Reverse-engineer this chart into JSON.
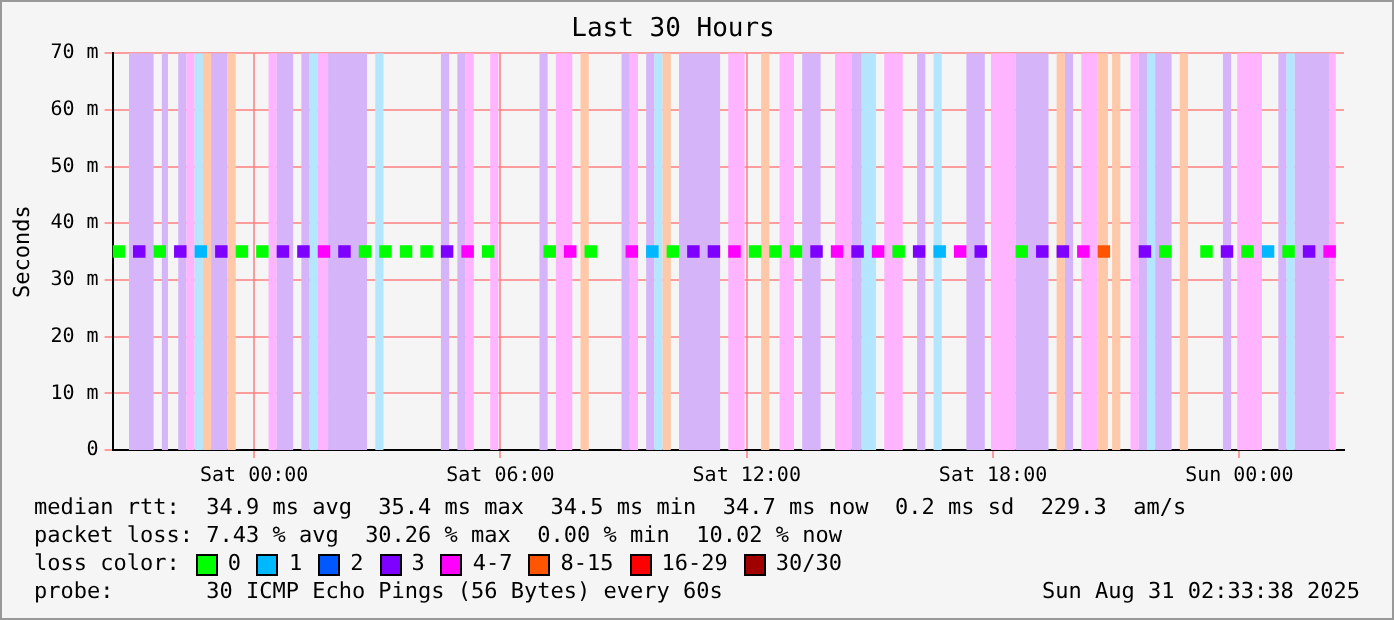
{
  "chart_data": {
    "type": "scatter",
    "title": "Last 30 Hours",
    "ylabel": "Seconds",
    "x": [
      "2025-08-29T20:42",
      "2025-08-29T21:12",
      "2025-08-29T21:42",
      "2025-08-29T22:12",
      "2025-08-29T22:42",
      "2025-08-29T23:12",
      "2025-08-29T23:42",
      "2025-08-30T00:12",
      "2025-08-30T00:42",
      "2025-08-30T01:12",
      "2025-08-30T01:42",
      "2025-08-30T02:12",
      "2025-08-30T02:42",
      "2025-08-30T03:12",
      "2025-08-30T03:42",
      "2025-08-30T04:12",
      "2025-08-30T04:42",
      "2025-08-30T05:12",
      "2025-08-30T05:42",
      "2025-08-30T06:12",
      "2025-08-30T06:42",
      "2025-08-30T07:12",
      "2025-08-30T07:42",
      "2025-08-30T08:12",
      "2025-08-30T08:42",
      "2025-08-30T09:12",
      "2025-08-30T09:42",
      "2025-08-30T10:12",
      "2025-08-30T10:42",
      "2025-08-30T11:12",
      "2025-08-30T11:42",
      "2025-08-30T12:12",
      "2025-08-30T12:42",
      "2025-08-30T13:12",
      "2025-08-30T13:42",
      "2025-08-30T14:12",
      "2025-08-30T14:42",
      "2025-08-30T15:12",
      "2025-08-30T15:42",
      "2025-08-30T16:12",
      "2025-08-30T16:42",
      "2025-08-30T17:12",
      "2025-08-30T17:42",
      "2025-08-30T18:12",
      "2025-08-30T18:42",
      "2025-08-30T19:12",
      "2025-08-30T19:42",
      "2025-08-30T20:12",
      "2025-08-30T20:42",
      "2025-08-30T21:12",
      "2025-08-30T21:42",
      "2025-08-30T22:12",
      "2025-08-30T22:42",
      "2025-08-30T23:12",
      "2025-08-30T23:42",
      "2025-08-31T00:12",
      "2025-08-31T00:42",
      "2025-08-31T01:12",
      "2025-08-31T01:42",
      "2025-08-31T02:12"
    ],
    "series": [
      {
        "name": "0",
        "color": "#00ff00",
        "values": [
          35,
          null,
          35,
          null,
          null,
          null,
          35,
          35,
          null,
          null,
          null,
          null,
          35,
          35,
          35,
          35,
          null,
          null,
          35,
          null,
          null,
          35,
          null,
          35,
          null,
          null,
          null,
          35,
          null,
          null,
          null,
          35,
          35,
          35,
          null,
          null,
          null,
          null,
          35,
          null,
          null,
          null,
          null,
          null,
          35,
          null,
          null,
          null,
          null,
          null,
          null,
          35,
          null,
          35,
          null,
          35,
          null,
          35,
          null,
          null
        ]
      },
      {
        "name": "1",
        "color": "#00b8ff",
        "values": [
          null,
          null,
          null,
          null,
          35,
          null,
          null,
          null,
          null,
          null,
          null,
          null,
          null,
          null,
          null,
          null,
          null,
          null,
          null,
          null,
          null,
          null,
          null,
          null,
          null,
          null,
          35,
          null,
          null,
          null,
          null,
          null,
          null,
          null,
          null,
          null,
          null,
          null,
          null,
          null,
          35,
          null,
          null,
          null,
          null,
          null,
          null,
          null,
          null,
          null,
          null,
          null,
          null,
          null,
          null,
          null,
          35,
          null,
          null,
          null
        ]
      },
      {
        "name": "2",
        "color": "#0059ff",
        "values": [
          null,
          null,
          null,
          null,
          null,
          null,
          null,
          null,
          null,
          null,
          null,
          null,
          null,
          null,
          null,
          null,
          null,
          null,
          null,
          null,
          null,
          null,
          null,
          null,
          null,
          null,
          null,
          null,
          null,
          null,
          null,
          null,
          null,
          null,
          null,
          null,
          null,
          null,
          null,
          null,
          null,
          null,
          null,
          null,
          null,
          null,
          null,
          null,
          null,
          null,
          null,
          null,
          null,
          null,
          null,
          null,
          null,
          null,
          null,
          null
        ]
      },
      {
        "name": "3",
        "color": "#7e00ff",
        "values": [
          null,
          35,
          null,
          35,
          null,
          35,
          null,
          null,
          35,
          35,
          null,
          35,
          null,
          null,
          null,
          null,
          35,
          null,
          null,
          null,
          null,
          null,
          null,
          null,
          null,
          null,
          null,
          null,
          35,
          35,
          null,
          null,
          null,
          null,
          35,
          null,
          35,
          null,
          null,
          35,
          null,
          null,
          35,
          null,
          null,
          35,
          35,
          null,
          null,
          null,
          35,
          null,
          null,
          null,
          35,
          null,
          null,
          null,
          35,
          null
        ]
      },
      {
        "name": "4-7",
        "color": "#ff00ff",
        "values": [
          null,
          null,
          null,
          null,
          null,
          null,
          null,
          null,
          null,
          null,
          35,
          null,
          null,
          null,
          null,
          null,
          null,
          35,
          null,
          null,
          null,
          null,
          35,
          null,
          null,
          35,
          null,
          null,
          null,
          null,
          35,
          null,
          null,
          null,
          null,
          35,
          null,
          35,
          null,
          null,
          null,
          35,
          null,
          null,
          null,
          null,
          null,
          35,
          null,
          null,
          null,
          null,
          null,
          null,
          null,
          null,
          null,
          null,
          null,
          35
        ]
      },
      {
        "name": "8-15",
        "color": "#ff5500",
        "values": [
          null,
          null,
          null,
          null,
          null,
          null,
          null,
          null,
          null,
          null,
          null,
          null,
          null,
          null,
          null,
          null,
          null,
          null,
          null,
          null,
          null,
          null,
          null,
          null,
          null,
          null,
          null,
          null,
          null,
          null,
          null,
          null,
          null,
          null,
          null,
          null,
          null,
          null,
          null,
          null,
          null,
          null,
          null,
          null,
          null,
          null,
          null,
          null,
          35,
          null,
          null,
          null,
          null,
          null,
          null,
          null,
          null,
          null,
          null,
          null
        ]
      },
      {
        "name": "16-29",
        "color": "#ff0000",
        "values": [
          null,
          null,
          null,
          null,
          null,
          null,
          null,
          null,
          null,
          null,
          null,
          null,
          null,
          null,
          null,
          null,
          null,
          null,
          null,
          null,
          null,
          null,
          null,
          null,
          null,
          null,
          null,
          null,
          null,
          null,
          null,
          null,
          null,
          null,
          null,
          null,
          null,
          null,
          null,
          null,
          null,
          null,
          null,
          null,
          null,
          null,
          null,
          null,
          null,
          null,
          null,
          null,
          null,
          null,
          null,
          null,
          null,
          null,
          null,
          null
        ]
      },
      {
        "name": "30/30",
        "color": "#a10000",
        "values": [
          null,
          null,
          null,
          null,
          null,
          null,
          null,
          null,
          null,
          null,
          null,
          null,
          null,
          null,
          null,
          null,
          null,
          null,
          null,
          null,
          null,
          null,
          null,
          null,
          null,
          null,
          null,
          null,
          null,
          null,
          null,
          null,
          null,
          null,
          null,
          null,
          null,
          null,
          null,
          null,
          null,
          null,
          null,
          null,
          null,
          null,
          null,
          null,
          null,
          null,
          null,
          null,
          null,
          null,
          null,
          null,
          null,
          null,
          null,
          null
        ]
      }
    ],
    "xlim": [
      "2025-08-29T20:33",
      "2025-08-31T02:33"
    ],
    "xticks": [
      {
        "value": "2025-08-30T00:00",
        "label": "Sat 00:00"
      },
      {
        "value": "2025-08-30T06:00",
        "label": "Sat 06:00"
      },
      {
        "value": "2025-08-30T12:00",
        "label": "Sat 12:00"
      },
      {
        "value": "2025-08-30T18:00",
        "label": "Sat 18:00"
      },
      {
        "value": "2025-08-31T00:00",
        "label": "Sun 00:00"
      }
    ],
    "ylim": [
      0,
      70
    ],
    "yticks": [
      0,
      {
        "value": 10,
        "label": "10 m"
      },
      {
        "value": 20,
        "label": "20 m"
      },
      {
        "value": 30,
        "label": "30 m"
      },
      {
        "value": 40,
        "label": "40 m"
      },
      {
        "value": 50,
        "label": "50 m"
      },
      {
        "value": 60,
        "label": "60 m"
      },
      {
        "value": 70,
        "label": "70 m"
      }
    ],
    "grid": true,
    "marker": "square",
    "legend": "bottom",
    "legend_title": "loss color:",
    "bands": [
      {
        "axis": "x",
        "from": "2025-08-29T20:57",
        "to": "2025-08-29T21:33",
        "color": "#d6b4fa"
      },
      {
        "axis": "x",
        "from": "2025-08-29T21:45",
        "to": "2025-08-29T21:54",
        "color": "#d6b4fa"
      },
      {
        "axis": "x",
        "from": "2025-08-29T22:09",
        "to": "2025-08-29T22:21",
        "color": "#d6b4fa"
      },
      {
        "axis": "x",
        "from": "2025-08-29T22:21",
        "to": "2025-08-29T22:33",
        "color": "#ffb4ff"
      },
      {
        "axis": "x",
        "from": "2025-08-29T22:33",
        "to": "2025-08-29T22:45",
        "color": "#b4e6ff"
      },
      {
        "axis": "x",
        "from": "2025-08-29T22:45",
        "to": "2025-08-29T22:57",
        "color": "#ffc8a8"
      },
      {
        "axis": "x",
        "from": "2025-08-29T22:57",
        "to": "2025-08-29T23:21",
        "color": "#d6b4fa"
      },
      {
        "axis": "x",
        "from": "2025-08-29T23:21",
        "to": "2025-08-29T23:33",
        "color": "#ffc8a8"
      },
      {
        "axis": "x",
        "from": "2025-08-30T00:21",
        "to": "2025-08-30T00:33",
        "color": "#ffb4ff"
      },
      {
        "axis": "x",
        "from": "2025-08-30T00:33",
        "to": "2025-08-30T00:57",
        "color": "#d6b4fa"
      },
      {
        "axis": "x",
        "from": "2025-08-30T01:09",
        "to": "2025-08-30T01:21",
        "color": "#d6b4fa"
      },
      {
        "axis": "x",
        "from": "2025-08-30T01:21",
        "to": "2025-08-30T01:33",
        "color": "#b4e6ff"
      },
      {
        "axis": "x",
        "from": "2025-08-30T01:33",
        "to": "2025-08-30T01:48",
        "color": "#ffb4ff"
      },
      {
        "axis": "x",
        "from": "2025-08-30T01:48",
        "to": "2025-08-30T02:45",
        "color": "#d6b4fa"
      },
      {
        "axis": "x",
        "from": "2025-08-30T02:57",
        "to": "2025-08-30T03:09",
        "color": "#b4e6ff"
      },
      {
        "axis": "x",
        "from": "2025-08-30T04:33",
        "to": "2025-08-30T04:45",
        "color": "#d6b4fa"
      },
      {
        "axis": "x",
        "from": "2025-08-30T04:57",
        "to": "2025-08-30T05:09",
        "color": "#d6b4fa"
      },
      {
        "axis": "x",
        "from": "2025-08-30T05:09",
        "to": "2025-08-30T05:21",
        "color": "#ffb4ff"
      },
      {
        "axis": "x",
        "from": "2025-08-30T05:45",
        "to": "2025-08-30T05:57",
        "color": "#ffb4ff"
      },
      {
        "axis": "x",
        "from": "2025-08-30T06:57",
        "to": "2025-08-30T07:09",
        "color": "#d6b4fa"
      },
      {
        "axis": "x",
        "from": "2025-08-30T07:21",
        "to": "2025-08-30T07:45",
        "color": "#ffb4ff"
      },
      {
        "axis": "x",
        "from": "2025-08-30T07:57",
        "to": "2025-08-30T08:09",
        "color": "#ffc8a8"
      },
      {
        "axis": "x",
        "from": "2025-08-30T08:57",
        "to": "2025-08-30T09:09",
        "color": "#d6b4fa"
      },
      {
        "axis": "x",
        "from": "2025-08-30T09:09",
        "to": "2025-08-30T09:21",
        "color": "#ffb4ff"
      },
      {
        "axis": "x",
        "from": "2025-08-30T09:33",
        "to": "2025-08-30T09:45",
        "color": "#d6b4fa"
      },
      {
        "axis": "x",
        "from": "2025-08-30T09:45",
        "to": "2025-08-30T09:57",
        "color": "#b4e6ff"
      },
      {
        "axis": "x",
        "from": "2025-08-30T09:57",
        "to": "2025-08-30T10:09",
        "color": "#ffc8a8"
      },
      {
        "axis": "x",
        "from": "2025-08-30T10:21",
        "to": "2025-08-30T11:21",
        "color": "#d6b4fa"
      },
      {
        "axis": "x",
        "from": "2025-08-30T11:33",
        "to": "2025-08-30T11:57",
        "color": "#ffb4ff"
      },
      {
        "axis": "x",
        "from": "2025-08-30T12:21",
        "to": "2025-08-30T12:33",
        "color": "#ffc8a8"
      },
      {
        "axis": "x",
        "from": "2025-08-30T12:48",
        "to": "2025-08-30T13:09",
        "color": "#ffb4ff"
      },
      {
        "axis": "x",
        "from": "2025-08-30T13:21",
        "to": "2025-08-30T13:48",
        "color": "#d6b4fa"
      },
      {
        "axis": "x",
        "from": "2025-08-30T14:09",
        "to": "2025-08-30T14:33",
        "color": "#ffb4ff"
      },
      {
        "axis": "x",
        "from": "2025-08-30T14:33",
        "to": "2025-08-30T14:48",
        "color": "#d6b4fa"
      },
      {
        "axis": "x",
        "from": "2025-08-30T14:48",
        "to": "2025-08-30T15:09",
        "color": "#b4e6ff"
      },
      {
        "axis": "x",
        "from": "2025-08-30T15:21",
        "to": "2025-08-30T15:48",
        "color": "#ffb4ff"
      },
      {
        "axis": "x",
        "from": "2025-08-30T16:09",
        "to": "2025-08-30T16:21",
        "color": "#d6b4fa"
      },
      {
        "axis": "x",
        "from": "2025-08-30T16:33",
        "to": "2025-08-30T16:45",
        "color": "#b4e6ff"
      },
      {
        "axis": "x",
        "from": "2025-08-30T17:21",
        "to": "2025-08-30T17:48",
        "color": "#d6b4fa"
      },
      {
        "axis": "x",
        "from": "2025-08-30T17:57",
        "to": "2025-08-30T18:33",
        "color": "#ffb4ff"
      },
      {
        "axis": "x",
        "from": "2025-08-30T18:33",
        "to": "2025-08-30T19:21",
        "color": "#d6b4fa"
      },
      {
        "axis": "x",
        "from": "2025-08-30T19:33",
        "to": "2025-08-30T19:45",
        "color": "#ffc8a8"
      },
      {
        "axis": "x",
        "from": "2025-08-30T19:45",
        "to": "2025-08-30T19:57",
        "color": "#d6b4fa"
      },
      {
        "axis": "x",
        "from": "2025-08-30T20:09",
        "to": "2025-08-30T20:33",
        "color": "#ffb4ff"
      },
      {
        "axis": "x",
        "from": "2025-08-30T20:33",
        "to": "2025-08-30T20:48",
        "color": "#ffc8a8"
      },
      {
        "axis": "x",
        "from": "2025-08-30T20:54",
        "to": "2025-08-30T21:06",
        "color": "#ffc8a8"
      },
      {
        "axis": "x",
        "from": "2025-08-30T21:21",
        "to": "2025-08-30T21:33",
        "color": "#ffb4ff"
      },
      {
        "axis": "x",
        "from": "2025-08-30T21:33",
        "to": "2025-08-30T21:45",
        "color": "#d6b4fa"
      },
      {
        "axis": "x",
        "from": "2025-08-30T21:45",
        "to": "2025-08-30T21:57",
        "color": "#b4e6ff"
      },
      {
        "axis": "x",
        "from": "2025-08-30T21:57",
        "to": "2025-08-30T22:21",
        "color": "#d6b4fa"
      },
      {
        "axis": "x",
        "from": "2025-08-30T22:33",
        "to": "2025-08-30T22:45",
        "color": "#ffc8a8"
      },
      {
        "axis": "x",
        "from": "2025-08-30T23:36",
        "to": "2025-08-30T23:48",
        "color": "#d6b4fa"
      },
      {
        "axis": "x",
        "from": "2025-08-30T23:57",
        "to": "2025-08-31T00:33",
        "color": "#ffb4ff"
      },
      {
        "axis": "x",
        "from": "2025-08-31T00:57",
        "to": "2025-08-31T01:09",
        "color": "#d6b4fa"
      },
      {
        "axis": "x",
        "from": "2025-08-31T01:09",
        "to": "2025-08-31T01:21",
        "color": "#b4e6ff"
      },
      {
        "axis": "x",
        "from": "2025-08-31T01:21",
        "to": "2025-08-31T02:12",
        "color": "#d6b4fa"
      },
      {
        "axis": "x",
        "from": "2025-08-31T02:12",
        "to": "2025-08-31T02:21",
        "color": "#ffb4ff"
      }
    ],
    "annotations": [
      "median rtt:  34.9 ms avg  35.4 ms max  34.5 ms min  34.7 ms now  0.2 ms sd  229.3  am/s",
      "packet loss: 7.43 % avg  30.26 % max  0.00 % min  10.02 % now",
      "probe:       30 ICMP Echo Pings (56 Bytes) every 60s",
      "Sun Aug 31 02:33:38 2025"
    ]
  }
}
